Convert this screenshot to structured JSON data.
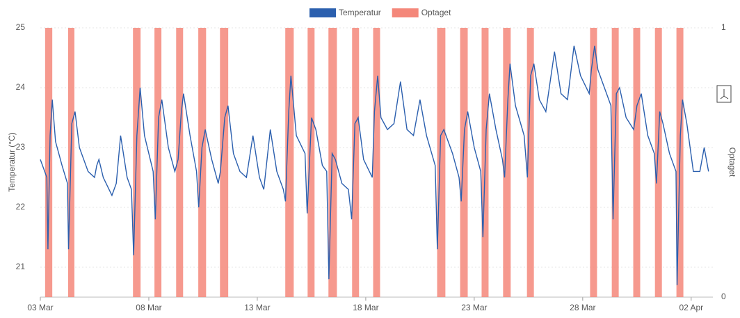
{
  "chart_data": {
    "type": "line",
    "y_label": "Temperatur (°C)",
    "y2_label": "Optaget",
    "xlim": [
      0,
      31
    ],
    "xticks": [
      {
        "value": 0,
        "label": "03 Mar"
      },
      {
        "value": 5,
        "label": "08 Mar"
      },
      {
        "value": 10,
        "label": "13 Mar"
      },
      {
        "value": 15,
        "label": "18 Mar"
      },
      {
        "value": 20,
        "label": "23 Mar"
      },
      {
        "value": 25,
        "label": "28 Mar"
      },
      {
        "value": 30,
        "label": "02 Apr"
      }
    ],
    "ylim": [
      20.5,
      25
    ],
    "yticks": [
      21,
      22,
      23,
      24,
      25
    ],
    "y2lim": [
      0,
      1
    ],
    "y2ticks": [
      0,
      1
    ],
    "grid": true,
    "legend": "top",
    "series": [
      {
        "name": "Temperatur",
        "type": "line",
        "color": "#2b5fae",
        "x": [
          0,
          0.2,
          0.3,
          0.35,
          0.45,
          0.55,
          0.7,
          1.0,
          1.25,
          1.3,
          1.45,
          1.6,
          1.8,
          2.2,
          2.5,
          2.6,
          2.7,
          2.9,
          3.3,
          3.5,
          3.7,
          4.0,
          4.2,
          4.3,
          4.45,
          4.6,
          4.8,
          5.2,
          5.3,
          5.45,
          5.6,
          5.9,
          6.2,
          6.35,
          6.5,
          6.6,
          6.9,
          7.2,
          7.3,
          7.45,
          7.6,
          7.9,
          8.2,
          8.3,
          8.5,
          8.65,
          8.9,
          9.2,
          9.5,
          9.8,
          10.1,
          10.3,
          10.6,
          10.9,
          11.2,
          11.3,
          11.45,
          11.55,
          11.8,
          12.2,
          12.3,
          12.5,
          12.7,
          13.0,
          13.2,
          13.3,
          13.45,
          13.6,
          13.9,
          14.2,
          14.35,
          14.5,
          14.65,
          14.9,
          15.3,
          15.4,
          15.55,
          15.7,
          16.0,
          16.3,
          16.6,
          16.9,
          17.2,
          17.5,
          17.8,
          18.2,
          18.3,
          18.45,
          18.6,
          19.0,
          19.3,
          19.4,
          19.55,
          19.7,
          20.0,
          20.3,
          20.4,
          20.55,
          20.7,
          21.0,
          21.3,
          21.4,
          21.55,
          21.65,
          21.9,
          22.3,
          22.45,
          22.6,
          22.75,
          23.0,
          23.3,
          23.7,
          24.0,
          24.3,
          24.6,
          24.9,
          25.3,
          25.4,
          25.55,
          25.7,
          26.0,
          26.3,
          26.4,
          26.55,
          26.7,
          27.0,
          27.35,
          27.5,
          27.7,
          28.0,
          28.3,
          28.4,
          28.55,
          28.7,
          29.0,
          29.3,
          29.35,
          29.5,
          29.6,
          29.8,
          30.1,
          30.4,
          30.6,
          30.8
        ],
        "values": [
          22.8,
          22.6,
          22.5,
          21.3,
          23.2,
          23.8,
          23.1,
          22.7,
          22.4,
          21.3,
          23.4,
          23.6,
          23.0,
          22.6,
          22.5,
          22.7,
          22.8,
          22.5,
          22.2,
          22.4,
          23.2,
          22.5,
          22.3,
          21.2,
          23.2,
          24.0,
          23.2,
          22.6,
          21.8,
          23.5,
          23.8,
          23.0,
          22.6,
          22.8,
          23.6,
          23.9,
          23.2,
          22.6,
          22.0,
          23.0,
          23.3,
          22.8,
          22.4,
          22.6,
          23.5,
          23.7,
          22.9,
          22.6,
          22.5,
          23.2,
          22.5,
          22.3,
          23.3,
          22.6,
          22.3,
          22.1,
          23.6,
          24.2,
          23.2,
          22.9,
          21.9,
          23.5,
          23.3,
          22.7,
          22.6,
          20.8,
          22.9,
          22.8,
          22.4,
          22.3,
          21.8,
          23.4,
          23.5,
          22.8,
          22.5,
          23.6,
          24.2,
          23.5,
          23.3,
          23.4,
          24.1,
          23.3,
          23.2,
          23.8,
          23.2,
          22.7,
          21.3,
          23.2,
          23.3,
          22.9,
          22.5,
          22.1,
          23.3,
          23.6,
          23.0,
          22.6,
          21.5,
          23.3,
          23.9,
          23.3,
          22.8,
          22.5,
          23.8,
          24.4,
          23.7,
          23.2,
          22.5,
          24.2,
          24.4,
          23.8,
          23.6,
          24.6,
          23.9,
          23.8,
          24.7,
          24.2,
          23.9,
          24.3,
          24.7,
          24.3,
          24.0,
          23.7,
          21.8,
          23.9,
          24.0,
          23.5,
          23.3,
          23.7,
          23.9,
          23.2,
          22.9,
          22.4,
          23.6,
          23.4,
          22.9,
          22.6,
          20.7,
          23.2,
          23.8,
          23.4,
          22.6,
          22.6,
          23.0,
          22.6
        ]
      },
      {
        "name": "Optaget",
        "type": "bar",
        "axis": "y2",
        "color": "#f4877a",
        "x": [
          [
            0.22,
            0.55
          ],
          [
            1.28,
            1.57
          ],
          [
            4.27,
            4.62
          ],
          [
            5.26,
            5.58
          ],
          [
            6.26,
            6.58
          ],
          [
            7.28,
            7.64
          ],
          [
            8.28,
            8.66
          ],
          [
            11.29,
            11.68
          ],
          [
            12.32,
            12.64
          ],
          [
            13.28,
            13.67
          ],
          [
            14.37,
            14.69
          ],
          [
            15.34,
            15.66
          ],
          [
            18.29,
            18.67
          ],
          [
            19.35,
            19.7
          ],
          [
            20.34,
            20.66
          ],
          [
            21.33,
            21.68
          ],
          [
            22.43,
            22.75
          ],
          [
            25.34,
            25.66
          ],
          [
            26.34,
            26.66
          ],
          [
            27.33,
            27.65
          ],
          [
            28.33,
            28.65
          ],
          [
            29.32,
            29.64
          ]
        ],
        "values": [
          1,
          1,
          1,
          1,
          1,
          1,
          1,
          1,
          1,
          1,
          1,
          1,
          1,
          1,
          1,
          1,
          1,
          1,
          1,
          1,
          1,
          1
        ]
      }
    ]
  }
}
